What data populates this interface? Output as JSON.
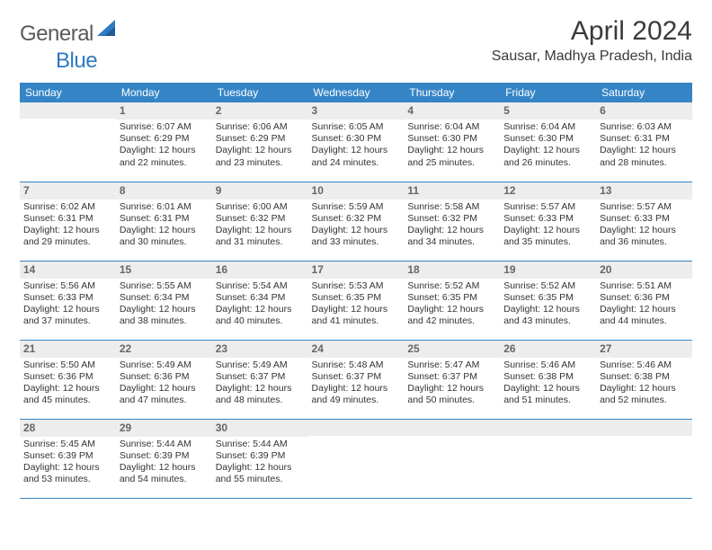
{
  "logo": {
    "general": "General",
    "blue": "Blue"
  },
  "title": "April 2024",
  "subtitle": "Sausar, Madhya Pradesh, India",
  "colors": {
    "header_bg": "#3585c6",
    "header_text": "#ffffff",
    "daynum_bg": "#ededed",
    "daynum_text": "#666666",
    "rule": "#3585c6",
    "body_text": "#333333",
    "title_text": "#3a3a3a",
    "logo_gray": "#5a5a5a",
    "logo_blue": "#2f7ac0"
  },
  "fonts": {
    "title_size_pt": 22,
    "subtitle_size_pt": 12,
    "header_size_pt": 9,
    "cell_size_pt": 8,
    "daynum_size_pt": 9
  },
  "day_headers": [
    "Sunday",
    "Monday",
    "Tuesday",
    "Wednesday",
    "Thursday",
    "Friday",
    "Saturday"
  ],
  "weeks": [
    [
      {
        "n": "",
        "sr": "",
        "ss": "",
        "dl": ""
      },
      {
        "n": "1",
        "sr": "Sunrise: 6:07 AM",
        "ss": "Sunset: 6:29 PM",
        "dl": "Daylight: 12 hours and 22 minutes."
      },
      {
        "n": "2",
        "sr": "Sunrise: 6:06 AM",
        "ss": "Sunset: 6:29 PM",
        "dl": "Daylight: 12 hours and 23 minutes."
      },
      {
        "n": "3",
        "sr": "Sunrise: 6:05 AM",
        "ss": "Sunset: 6:30 PM",
        "dl": "Daylight: 12 hours and 24 minutes."
      },
      {
        "n": "4",
        "sr": "Sunrise: 6:04 AM",
        "ss": "Sunset: 6:30 PM",
        "dl": "Daylight: 12 hours and 25 minutes."
      },
      {
        "n": "5",
        "sr": "Sunrise: 6:04 AM",
        "ss": "Sunset: 6:30 PM",
        "dl": "Daylight: 12 hours and 26 minutes."
      },
      {
        "n": "6",
        "sr": "Sunrise: 6:03 AM",
        "ss": "Sunset: 6:31 PM",
        "dl": "Daylight: 12 hours and 28 minutes."
      }
    ],
    [
      {
        "n": "7",
        "sr": "Sunrise: 6:02 AM",
        "ss": "Sunset: 6:31 PM",
        "dl": "Daylight: 12 hours and 29 minutes."
      },
      {
        "n": "8",
        "sr": "Sunrise: 6:01 AM",
        "ss": "Sunset: 6:31 PM",
        "dl": "Daylight: 12 hours and 30 minutes."
      },
      {
        "n": "9",
        "sr": "Sunrise: 6:00 AM",
        "ss": "Sunset: 6:32 PM",
        "dl": "Daylight: 12 hours and 31 minutes."
      },
      {
        "n": "10",
        "sr": "Sunrise: 5:59 AM",
        "ss": "Sunset: 6:32 PM",
        "dl": "Daylight: 12 hours and 33 minutes."
      },
      {
        "n": "11",
        "sr": "Sunrise: 5:58 AM",
        "ss": "Sunset: 6:32 PM",
        "dl": "Daylight: 12 hours and 34 minutes."
      },
      {
        "n": "12",
        "sr": "Sunrise: 5:57 AM",
        "ss": "Sunset: 6:33 PM",
        "dl": "Daylight: 12 hours and 35 minutes."
      },
      {
        "n": "13",
        "sr": "Sunrise: 5:57 AM",
        "ss": "Sunset: 6:33 PM",
        "dl": "Daylight: 12 hours and 36 minutes."
      }
    ],
    [
      {
        "n": "14",
        "sr": "Sunrise: 5:56 AM",
        "ss": "Sunset: 6:33 PM",
        "dl": "Daylight: 12 hours and 37 minutes."
      },
      {
        "n": "15",
        "sr": "Sunrise: 5:55 AM",
        "ss": "Sunset: 6:34 PM",
        "dl": "Daylight: 12 hours and 38 minutes."
      },
      {
        "n": "16",
        "sr": "Sunrise: 5:54 AM",
        "ss": "Sunset: 6:34 PM",
        "dl": "Daylight: 12 hours and 40 minutes."
      },
      {
        "n": "17",
        "sr": "Sunrise: 5:53 AM",
        "ss": "Sunset: 6:35 PM",
        "dl": "Daylight: 12 hours and 41 minutes."
      },
      {
        "n": "18",
        "sr": "Sunrise: 5:52 AM",
        "ss": "Sunset: 6:35 PM",
        "dl": "Daylight: 12 hours and 42 minutes."
      },
      {
        "n": "19",
        "sr": "Sunrise: 5:52 AM",
        "ss": "Sunset: 6:35 PM",
        "dl": "Daylight: 12 hours and 43 minutes."
      },
      {
        "n": "20",
        "sr": "Sunrise: 5:51 AM",
        "ss": "Sunset: 6:36 PM",
        "dl": "Daylight: 12 hours and 44 minutes."
      }
    ],
    [
      {
        "n": "21",
        "sr": "Sunrise: 5:50 AM",
        "ss": "Sunset: 6:36 PM",
        "dl": "Daylight: 12 hours and 45 minutes."
      },
      {
        "n": "22",
        "sr": "Sunrise: 5:49 AM",
        "ss": "Sunset: 6:36 PM",
        "dl": "Daylight: 12 hours and 47 minutes."
      },
      {
        "n": "23",
        "sr": "Sunrise: 5:49 AM",
        "ss": "Sunset: 6:37 PM",
        "dl": "Daylight: 12 hours and 48 minutes."
      },
      {
        "n": "24",
        "sr": "Sunrise: 5:48 AM",
        "ss": "Sunset: 6:37 PM",
        "dl": "Daylight: 12 hours and 49 minutes."
      },
      {
        "n": "25",
        "sr": "Sunrise: 5:47 AM",
        "ss": "Sunset: 6:37 PM",
        "dl": "Daylight: 12 hours and 50 minutes."
      },
      {
        "n": "26",
        "sr": "Sunrise: 5:46 AM",
        "ss": "Sunset: 6:38 PM",
        "dl": "Daylight: 12 hours and 51 minutes."
      },
      {
        "n": "27",
        "sr": "Sunrise: 5:46 AM",
        "ss": "Sunset: 6:38 PM",
        "dl": "Daylight: 12 hours and 52 minutes."
      }
    ],
    [
      {
        "n": "28",
        "sr": "Sunrise: 5:45 AM",
        "ss": "Sunset: 6:39 PM",
        "dl": "Daylight: 12 hours and 53 minutes."
      },
      {
        "n": "29",
        "sr": "Sunrise: 5:44 AM",
        "ss": "Sunset: 6:39 PM",
        "dl": "Daylight: 12 hours and 54 minutes."
      },
      {
        "n": "30",
        "sr": "Sunrise: 5:44 AM",
        "ss": "Sunset: 6:39 PM",
        "dl": "Daylight: 12 hours and 55 minutes."
      },
      {
        "n": "",
        "sr": "",
        "ss": "",
        "dl": ""
      },
      {
        "n": "",
        "sr": "",
        "ss": "",
        "dl": ""
      },
      {
        "n": "",
        "sr": "",
        "ss": "",
        "dl": ""
      },
      {
        "n": "",
        "sr": "",
        "ss": "",
        "dl": ""
      }
    ]
  ]
}
